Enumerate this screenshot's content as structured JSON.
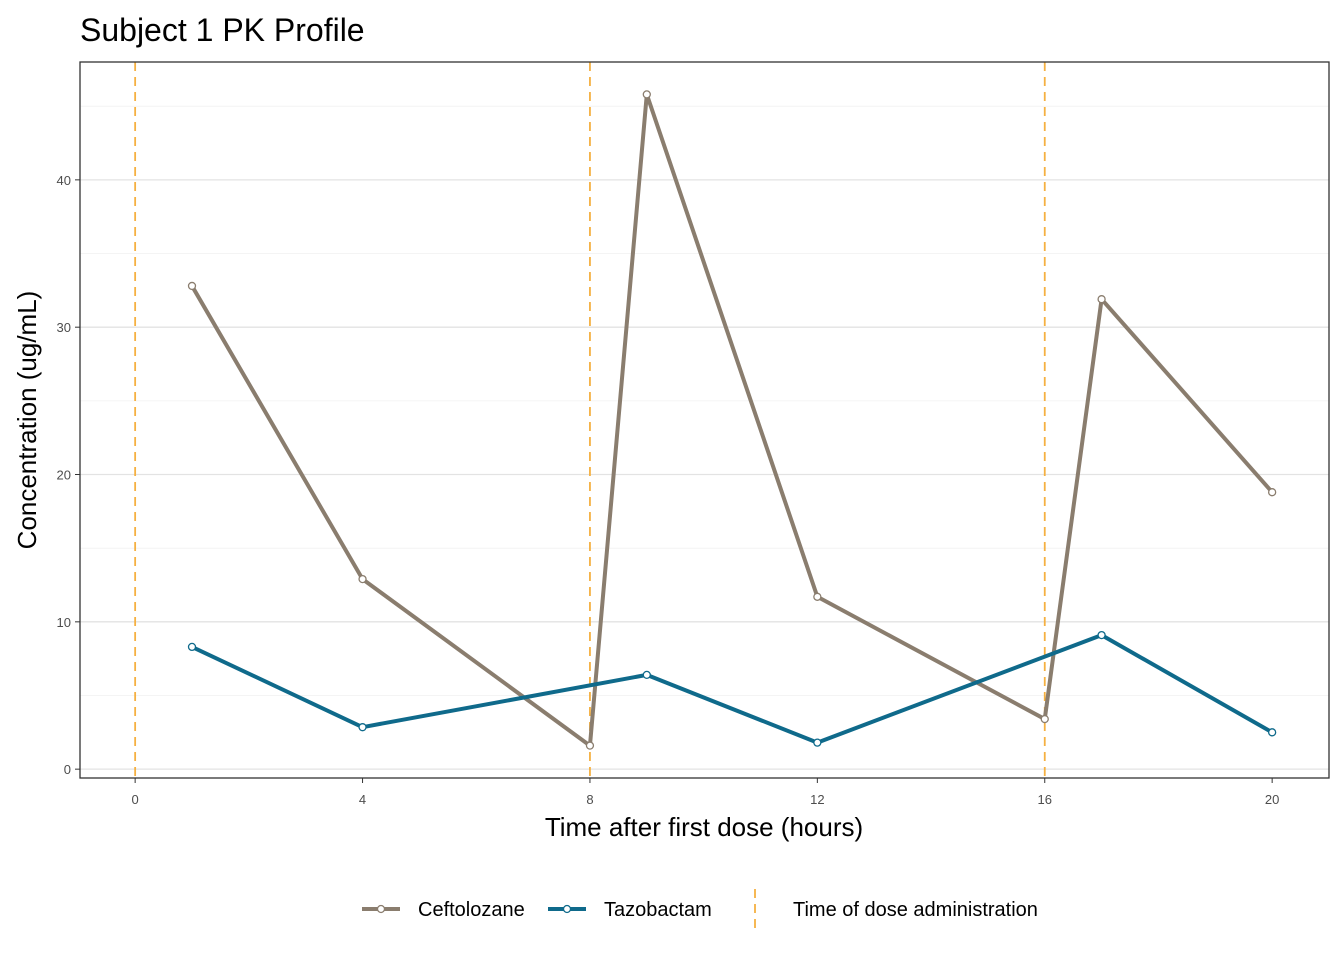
{
  "chart_data": {
    "type": "line",
    "title": "Subject 1 PK Profile",
    "xlabel": "Time after first dose (hours)",
    "ylabel": "Concentration (ug/mL)",
    "xlim": [
      -0.97,
      21.0
    ],
    "ylim": [
      -0.6,
      48.0
    ],
    "xticks": [
      0,
      4,
      8,
      12,
      16,
      20
    ],
    "yticks": [
      0,
      10,
      20,
      30,
      40
    ],
    "grid": true,
    "legend_position": "bottom",
    "series": [
      {
        "name": "Ceftolozane",
        "color": "#8a7d6e",
        "x": [
          1,
          4,
          8,
          9,
          12,
          16,
          17,
          20
        ],
        "y": [
          32.8,
          12.9,
          1.6,
          45.8,
          11.7,
          3.4,
          31.9,
          18.8
        ]
      },
      {
        "name": "Tazobactam",
        "color": "#0f6a8b",
        "x": [
          1,
          4,
          9,
          12,
          17,
          20
        ],
        "y": [
          8.3,
          2.85,
          6.4,
          1.8,
          9.1,
          2.5
        ]
      }
    ],
    "dose_times": [
      0,
      8,
      16
    ],
    "dose_label": "Time of dose administration",
    "dose_color": "#f5b041"
  }
}
